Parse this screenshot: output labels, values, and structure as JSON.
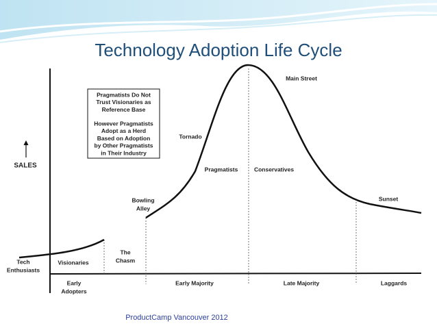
{
  "title": "Technology Adoption Life Cycle",
  "footer": "ProductCamp Vancouver 2012",
  "axis_label": "SALES",
  "note": {
    "paragraphs": [
      [
        "Pragmatists Do Not",
        "Trust Visionaries as",
        "Reference Base"
      ],
      [
        "However Pragmatists",
        "Adopt as a Herd",
        "Based on Adoption",
        "by Other Pragmatists",
        "in Their Industry"
      ]
    ]
  },
  "labels": [
    {
      "lines": [
        "Main Street"
      ]
    },
    {
      "lines": [
        "Tornado"
      ]
    },
    {
      "lines": [
        "Pragmatists"
      ]
    },
    {
      "lines": [
        "Conservatives"
      ]
    },
    {
      "lines": [
        "Bowling",
        "Alley"
      ]
    },
    {
      "lines": [
        "Sunset"
      ]
    },
    {
      "lines": [
        "The",
        "Chasm"
      ]
    },
    {
      "lines": [
        "Tech",
        "Enthusiasts"
      ]
    },
    {
      "lines": [
        "Visionaries"
      ]
    },
    {
      "lines": [
        "Early",
        "Adopters"
      ]
    },
    {
      "lines": [
        "Early Majority"
      ]
    },
    {
      "lines": [
        "Late Majority"
      ]
    },
    {
      "lines": [
        "Laggards"
      ]
    }
  ]
}
